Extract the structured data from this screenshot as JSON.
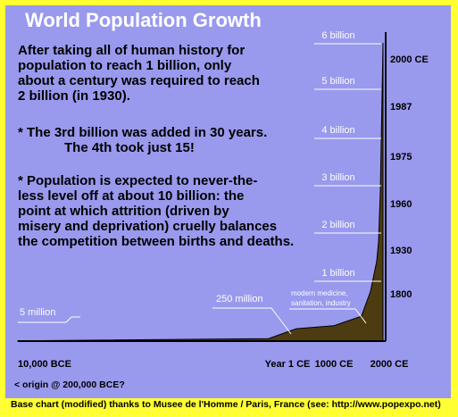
{
  "chart_data": {
    "type": "area",
    "title": "World Population Growth",
    "ylabel": "",
    "xlabel": "",
    "x_tick_labels": [
      "10,000 BCE",
      "Year 1 CE",
      "1000 CE",
      "2000 CE"
    ],
    "origin_note": "< origin @ 200,000 BCE?",
    "milestones": [
      {
        "label": "6 billion",
        "year_label": "2000 CE",
        "year": 2000,
        "value": 6.0
      },
      {
        "label": "5 billion",
        "year_label": "1987",
        "year": 1987,
        "value": 5.0
      },
      {
        "label": "4 billion",
        "year_label": "1975",
        "year": 1975,
        "value": 4.0
      },
      {
        "label": "3 billion",
        "year_label": "1960",
        "year": 1960,
        "value": 3.0
      },
      {
        "label": "2 billion",
        "year_label": "1930",
        "year": 1930,
        "value": 2.0
      },
      {
        "label": "1 billion",
        "year_label": "1800",
        "year": 1800,
        "value": 1.0
      }
    ],
    "early_labels": [
      {
        "label": "5 million",
        "value": 0.005
      },
      {
        "label": "250 million",
        "value": 0.25
      }
    ],
    "annotation": "modern medicine, sanitation, industry",
    "series": [
      {
        "x": [
          -10000,
          -1000,
          1,
          1000,
          1600,
          1800,
          1900,
          1930,
          1960,
          1975,
          1987,
          2000
        ],
        "values": [
          0.005,
          0.05,
          0.25,
          0.31,
          0.5,
          1.0,
          1.6,
          2.0,
          3.0,
          4.0,
          5.0,
          6.0
        ]
      }
    ]
  },
  "text": {
    "intro": [
      "After taking all of human history for",
      "population to reach 1 billion, only",
      "about a century was required to reach",
      "2 billion (in 1930)."
    ],
    "billion_facts": [
      "* The 3rd billion was added in 30 years.",
      "The 4th took just 15!"
    ],
    "projection": [
      "* Population is expected to never-the-",
      "less level off at about 10 billion: the",
      "point at which attrition (driven by",
      "misery and deprivation) cruelly balances",
      "the competition between births and deaths."
    ],
    "credit": "Base chart (modified) thanks to Musee de l'Homme / Paris, France  (see: http://www.popexpo.net)"
  },
  "colors": {
    "background": "#9999ee",
    "border": "#ffff33",
    "area_fill": "#4d3c12",
    "label_text": "#ffffff",
    "axis": "#000000"
  }
}
